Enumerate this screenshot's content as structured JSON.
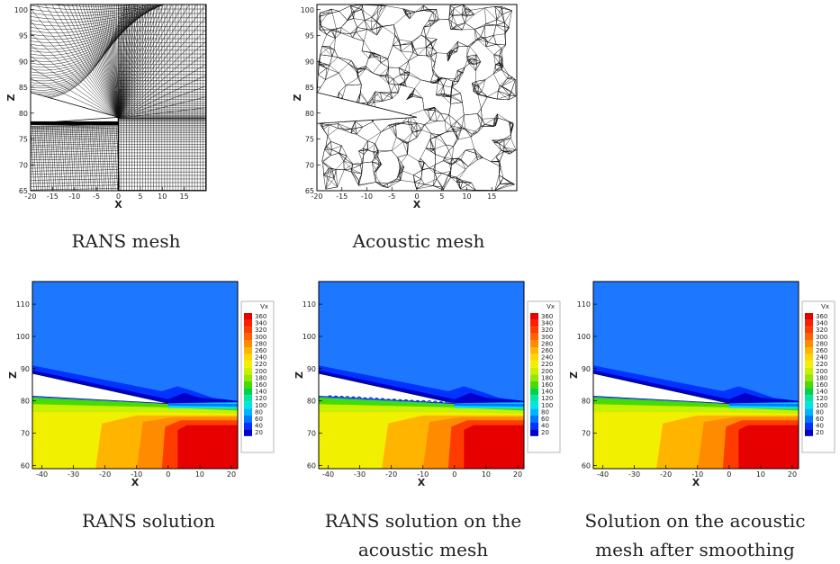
{
  "panels": [
    {
      "id": "rans_mesh",
      "kind": "mesh_structured",
      "caption": "RANS mesh",
      "xlabel": "X",
      "ylabel": "Z",
      "xlim": [
        -20,
        20
      ],
      "ylim": [
        65,
        101
      ],
      "xticks": [
        -20,
        -15,
        -10,
        -5,
        0,
        5,
        10,
        15
      ],
      "yticks": [
        65,
        70,
        75,
        80,
        85,
        90,
        95,
        100
      ]
    },
    {
      "id": "acoustic_mesh",
      "kind": "mesh_unstructured",
      "caption": "Acoustic mesh",
      "xlabel": "X",
      "ylabel": "Z",
      "xlim": [
        -20,
        20
      ],
      "ylim": [
        65,
        101
      ],
      "xticks": [
        -20,
        -15,
        -10,
        -5,
        0,
        5,
        10,
        15
      ],
      "yticks": [
        65,
        70,
        75,
        80,
        85,
        90,
        95,
        100
      ]
    },
    {
      "id": "rans_solution",
      "kind": "contour",
      "caption": "RANS solution",
      "variant": "smooth",
      "xlabel": "X",
      "ylabel": "Z",
      "xlim": [
        -43,
        22
      ],
      "ylim": [
        59,
        117
      ],
      "xticks": [
        -40,
        -30,
        -20,
        -10,
        0,
        10,
        20
      ],
      "yticks": [
        60,
        70,
        80,
        90,
        100,
        110
      ]
    },
    {
      "id": "rans_on_acoustic",
      "kind": "contour",
      "caption": "RANS solution on the acoustic mesh",
      "variant": "noisy",
      "xlabel": "X",
      "ylabel": "Z",
      "xlim": [
        -43,
        22
      ],
      "ylim": [
        59,
        117
      ],
      "xticks": [
        -40,
        -30,
        -20,
        -10,
        0,
        10,
        20
      ],
      "yticks": [
        60,
        70,
        80,
        90,
        100,
        110
      ]
    },
    {
      "id": "smoothed",
      "kind": "contour",
      "caption": "Solution on the acoustic mesh after smoothing",
      "variant": "smooth",
      "xlabel": "X",
      "ylabel": "Z",
      "xlim": [
        -43,
        22
      ],
      "ylim": [
        59,
        117
      ],
      "xticks": [
        -40,
        -30,
        -20,
        -10,
        0,
        10,
        20
      ],
      "yticks": [
        60,
        70,
        80,
        90,
        100,
        110
      ]
    }
  ],
  "legend": {
    "title": "Vx",
    "levels": [
      360,
      340,
      320,
      300,
      280,
      260,
      240,
      220,
      200,
      180,
      160,
      140,
      120,
      100,
      80,
      60,
      40,
      20
    ]
  },
  "colors": {
    "colormap": [
      "#0000c8",
      "#0033ff",
      "#0077ff",
      "#00b4ff",
      "#00e6e6",
      "#00e6a0",
      "#00d24b",
      "#46dc00",
      "#96e600",
      "#c8f000",
      "#f0f000",
      "#ffd700",
      "#ffb400",
      "#ff8c00",
      "#ff6400",
      "#ff3c00",
      "#ff1e00",
      "#e60000"
    ],
    "background_flow": "#1e78ff",
    "mesh_line": "#111111"
  }
}
